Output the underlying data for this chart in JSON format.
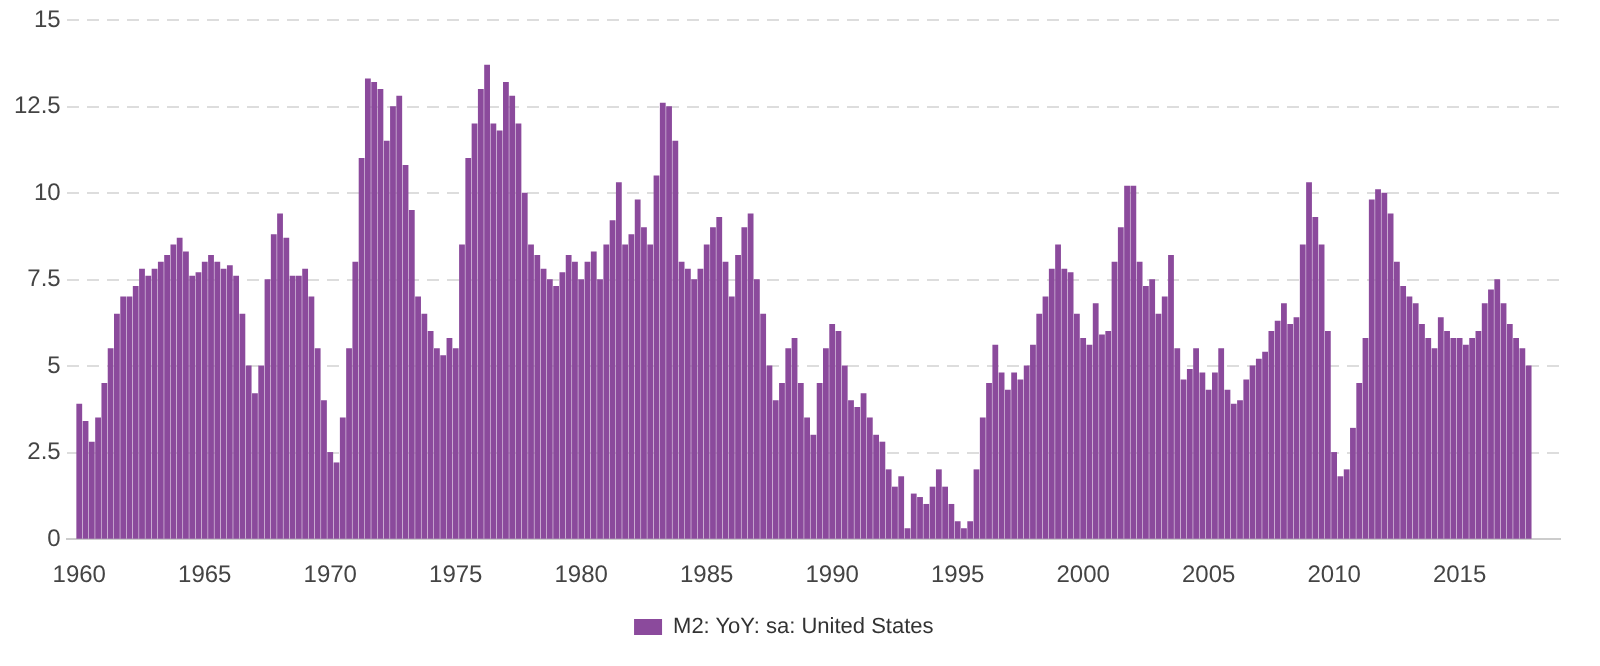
{
  "chart_data": {
    "type": "bar",
    "x": [
      "1960-01",
      "1960-04",
      "1960-07",
      "1960-10",
      "1961-01",
      "1961-04",
      "1961-07",
      "1961-10",
      "1962-01",
      "1962-04",
      "1962-07",
      "1962-10",
      "1963-01",
      "1963-04",
      "1963-07",
      "1963-10",
      "1964-01",
      "1964-04",
      "1964-07",
      "1964-10",
      "1965-01",
      "1965-04",
      "1965-07",
      "1965-10",
      "1966-01",
      "1966-04",
      "1966-07",
      "1966-10",
      "1967-01",
      "1967-04",
      "1967-07",
      "1967-10",
      "1968-01",
      "1968-04",
      "1968-07",
      "1968-10",
      "1969-01",
      "1969-04",
      "1969-07",
      "1969-10",
      "1970-01",
      "1970-04",
      "1970-07",
      "1970-10",
      "1971-01",
      "1971-04",
      "1971-07",
      "1971-10",
      "1972-01",
      "1972-04",
      "1972-07",
      "1972-10",
      "1973-01",
      "1973-04",
      "1973-07",
      "1973-10",
      "1974-01",
      "1974-04",
      "1974-07",
      "1974-10",
      "1975-01",
      "1975-04",
      "1975-07",
      "1975-10",
      "1976-01",
      "1976-04",
      "1976-07",
      "1976-10",
      "1977-01",
      "1977-04",
      "1977-07",
      "1977-10",
      "1978-01",
      "1978-04",
      "1978-07",
      "1978-10",
      "1979-01",
      "1979-04",
      "1979-07",
      "1979-10",
      "1980-01",
      "1980-04",
      "1980-07",
      "1980-10",
      "1981-01",
      "1981-04",
      "1981-07",
      "1981-10",
      "1982-01",
      "1982-04",
      "1982-07",
      "1982-10",
      "1983-01",
      "1983-04",
      "1983-07",
      "1983-10",
      "1984-01",
      "1984-04",
      "1984-07",
      "1984-10",
      "1985-01",
      "1985-04",
      "1985-07",
      "1985-10",
      "1986-01",
      "1986-04",
      "1986-07",
      "1986-10",
      "1987-01",
      "1987-04",
      "1987-07",
      "1987-10",
      "1988-01",
      "1988-04",
      "1988-07",
      "1988-10",
      "1989-01",
      "1989-04",
      "1989-07",
      "1989-10",
      "1990-01",
      "1990-04",
      "1990-07",
      "1990-10",
      "1991-01",
      "1991-04",
      "1991-07",
      "1991-10",
      "1992-01",
      "1992-04",
      "1992-07",
      "1992-10",
      "1993-01",
      "1993-04",
      "1993-07",
      "1993-10",
      "1994-01",
      "1994-04",
      "1994-07",
      "1994-10",
      "1995-01",
      "1995-04",
      "1995-07",
      "1995-10",
      "1996-01",
      "1996-04",
      "1996-07",
      "1996-10",
      "1997-01",
      "1997-04",
      "1997-07",
      "1997-10",
      "1998-01",
      "1998-04",
      "1998-07",
      "1998-10",
      "1999-01",
      "1999-04",
      "1999-07",
      "1999-10",
      "2000-01",
      "2000-04",
      "2000-07",
      "2000-10",
      "2001-01",
      "2001-04",
      "2001-07",
      "2001-10",
      "2002-01",
      "2002-04",
      "2002-07",
      "2002-10",
      "2003-01",
      "2003-04",
      "2003-07",
      "2003-10",
      "2004-01",
      "2004-04",
      "2004-07",
      "2004-10",
      "2005-01",
      "2005-04",
      "2005-07",
      "2005-10",
      "2006-01",
      "2006-04",
      "2006-07",
      "2006-10",
      "2007-01",
      "2007-04",
      "2007-07",
      "2007-10",
      "2008-01",
      "2008-04",
      "2008-07",
      "2008-10",
      "2009-01",
      "2009-04",
      "2009-07",
      "2009-10",
      "2010-01",
      "2010-04",
      "2010-07",
      "2010-10",
      "2011-01",
      "2011-04",
      "2011-07",
      "2011-10",
      "2012-01",
      "2012-04",
      "2012-07",
      "2012-10",
      "2013-01",
      "2013-04",
      "2013-07",
      "2013-10",
      "2014-01",
      "2014-04",
      "2014-07",
      "2014-10",
      "2015-01",
      "2015-04",
      "2015-07",
      "2015-10",
      "2016-01",
      "2016-04",
      "2016-07",
      "2016-10",
      "2017-01",
      "2017-04",
      "2017-07",
      "2017-10"
    ],
    "series": [
      {
        "name": "M2: YoY: sa: United States",
        "color": "#8b4a9c",
        "values": [
          3.9,
          3.4,
          2.8,
          3.5,
          4.5,
          5.5,
          6.5,
          7.0,
          7.0,
          7.3,
          7.8,
          7.6,
          7.8,
          8.0,
          8.2,
          8.5,
          8.7,
          8.3,
          7.6,
          7.7,
          8.0,
          8.2,
          8.0,
          7.8,
          7.9,
          7.6,
          6.5,
          5.0,
          4.2,
          5.0,
          7.5,
          8.8,
          9.4,
          8.7,
          7.6,
          7.6,
          7.8,
          7.0,
          5.5,
          4.0,
          2.5,
          2.2,
          3.5,
          5.5,
          8.0,
          11.0,
          13.3,
          13.2,
          13.0,
          11.5,
          12.5,
          12.8,
          10.8,
          9.5,
          7.0,
          6.5,
          6.0,
          5.5,
          5.3,
          5.8,
          5.5,
          8.5,
          11.0,
          12.0,
          13.0,
          13.7,
          12.0,
          11.8,
          13.2,
          12.8,
          12.0,
          10.0,
          8.5,
          8.2,
          7.8,
          7.5,
          7.3,
          7.7,
          8.2,
          8.0,
          7.5,
          8.0,
          8.3,
          7.5,
          8.5,
          9.2,
          10.3,
          8.5,
          8.8,
          9.8,
          9.0,
          8.5,
          10.5,
          12.6,
          12.5,
          11.5,
          8.0,
          7.8,
          7.5,
          7.8,
          8.5,
          9.0,
          9.3,
          8.0,
          7.0,
          8.2,
          9.0,
          9.4,
          7.5,
          6.5,
          5.0,
          4.0,
          4.5,
          5.5,
          5.8,
          4.5,
          3.5,
          3.0,
          4.5,
          5.5,
          6.2,
          6.0,
          5.0,
          4.0,
          3.8,
          4.2,
          3.5,
          3.0,
          2.8,
          2.0,
          1.5,
          1.8,
          0.3,
          1.3,
          1.2,
          1.0,
          1.5,
          2.0,
          1.5,
          1.0,
          0.5,
          0.3,
          0.5,
          2.0,
          3.5,
          4.5,
          5.6,
          4.8,
          4.3,
          4.8,
          4.6,
          5.0,
          5.6,
          6.5,
          7.0,
          7.8,
          8.5,
          7.8,
          7.7,
          6.5,
          5.8,
          5.6,
          6.8,
          5.9,
          6.0,
          8.0,
          9.0,
          10.2,
          10.2,
          8.0,
          7.3,
          7.5,
          6.5,
          7.0,
          8.2,
          5.5,
          4.6,
          4.9,
          5.5,
          4.8,
          4.3,
          4.8,
          5.5,
          4.3,
          3.9,
          4.0,
          4.6,
          5.0,
          5.2,
          5.4,
          6.0,
          6.3,
          6.8,
          6.2,
          6.4,
          8.5,
          10.3,
          9.3,
          8.5,
          6.0,
          2.5,
          1.8,
          2.0,
          3.2,
          4.5,
          5.8,
          9.8,
          10.1,
          10.0,
          9.4,
          8.0,
          7.3,
          7.0,
          6.8,
          6.2,
          5.8,
          5.5,
          6.4,
          6.0,
          5.8,
          5.8,
          5.6,
          5.8,
          6.0,
          6.8,
          7.2,
          7.5,
          6.8,
          6.2,
          5.8,
          5.5,
          5.0
        ]
      }
    ],
    "xlim": [
      "1959-07",
      "2019-01"
    ],
    "xticks": [
      "1960",
      "1965",
      "1970",
      "1975",
      "1980",
      "1985",
      "1990",
      "1995",
      "2000",
      "2005",
      "2010",
      "2015"
    ],
    "ylim": [
      0,
      15
    ],
    "yticks": [
      0,
      2.5,
      5,
      7.5,
      10,
      12.5,
      15
    ],
    "grid": "y",
    "legend": "bottom"
  }
}
